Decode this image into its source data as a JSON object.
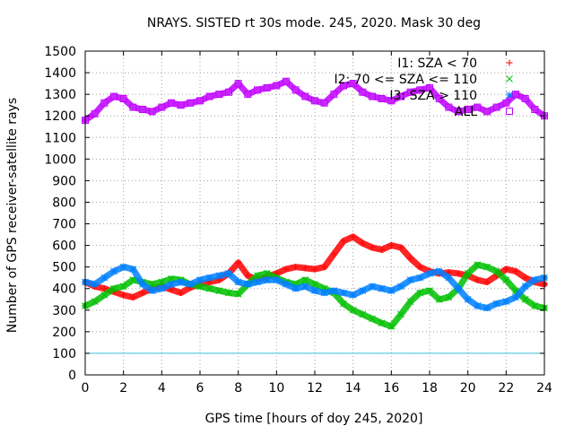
{
  "chart_data": {
    "type": "scatter",
    "title": "NRAYS. SISTED rt 30s mode. 245, 2020. Mask 30 deg",
    "xlabel": "GPS time [hours of doy 245, 2020]",
    "ylabel": "Number of GPS receiver-satellite rays",
    "xlim": [
      0,
      24
    ],
    "ylim": [
      0,
      1500
    ],
    "xticks": [
      0,
      2,
      4,
      6,
      8,
      10,
      12,
      14,
      16,
      18,
      20,
      22,
      24
    ],
    "yticks": [
      0,
      100,
      200,
      300,
      400,
      500,
      600,
      700,
      800,
      900,
      1000,
      1100,
      1200,
      1300,
      1400,
      1500
    ],
    "grid": true,
    "legend_position": "top-right",
    "reference_line": {
      "y": 100,
      "color": "#40c0e0"
    },
    "series": [
      {
        "name": "I1: SZA < 70",
        "marker": "plus",
        "color": "#ff0000",
        "x": [
          0,
          0.5,
          1,
          1.5,
          2,
          2.5,
          3,
          3.5,
          4,
          4.5,
          5,
          5.5,
          6,
          6.5,
          7,
          7.5,
          8,
          8.5,
          9,
          9.5,
          10,
          10.5,
          11,
          11.5,
          12,
          12.5,
          13,
          13.5,
          14,
          14.5,
          15,
          15.5,
          16,
          16.5,
          17,
          17.5,
          18,
          18.5,
          19,
          19.5,
          20,
          20.5,
          21,
          21.5,
          22,
          22.5,
          23,
          23.5,
          24
        ],
        "values": [
          430,
          410,
          400,
          385,
          370,
          360,
          380,
          400,
          410,
          395,
          380,
          405,
          420,
          430,
          440,
          470,
          520,
          460,
          440,
          455,
          470,
          490,
          500,
          495,
          490,
          500,
          560,
          620,
          640,
          610,
          590,
          580,
          600,
          590,
          540,
          500,
          480,
          470,
          475,
          470,
          460,
          440,
          430,
          460,
          490,
          480,
          450,
          430,
          420
        ]
      },
      {
        "name": "I2: 70 <= SZA <= 110",
        "marker": "cross",
        "color": "#00c000",
        "x": [
          0,
          0.5,
          1,
          1.5,
          2,
          2.5,
          3,
          3.5,
          4,
          4.5,
          5,
          5.5,
          6,
          6.5,
          7,
          7.5,
          8,
          8.5,
          9,
          9.5,
          10,
          10.5,
          11,
          11.5,
          12,
          12.5,
          13,
          13.5,
          14,
          14.5,
          15,
          15.5,
          16,
          16.5,
          17,
          17.5,
          18,
          18.5,
          19,
          19.5,
          20,
          20.5,
          21,
          21.5,
          22,
          22.5,
          23,
          23.5,
          24
        ],
        "values": [
          320,
          340,
          370,
          400,
          410,
          440,
          430,
          420,
          430,
          445,
          440,
          420,
          410,
          400,
          390,
          380,
          375,
          420,
          460,
          470,
          450,
          430,
          420,
          440,
          420,
          400,
          380,
          330,
          300,
          280,
          260,
          240,
          225,
          280,
          340,
          380,
          390,
          350,
          360,
          400,
          470,
          510,
          500,
          480,
          440,
          390,
          350,
          320,
          310
        ]
      },
      {
        "name": "I3: SZA > 110",
        "marker": "star",
        "color": "#0080ff",
        "x": [
          0,
          0.5,
          1,
          1.5,
          2,
          2.5,
          3,
          3.5,
          4,
          4.5,
          5,
          5.5,
          6,
          6.5,
          7,
          7.5,
          8,
          8.5,
          9,
          9.5,
          10,
          10.5,
          11,
          11.5,
          12,
          12.5,
          13,
          13.5,
          14,
          14.5,
          15,
          15.5,
          16,
          16.5,
          17,
          17.5,
          18,
          18.5,
          19,
          19.5,
          20,
          20.5,
          21,
          21.5,
          22,
          22.5,
          23,
          23.5,
          24
        ],
        "values": [
          430,
          420,
          450,
          480,
          500,
          490,
          420,
          390,
          400,
          420,
          430,
          420,
          440,
          450,
          460,
          470,
          430,
          420,
          430,
          440,
          440,
          420,
          400,
          410,
          390,
          380,
          390,
          380,
          370,
          390,
          410,
          400,
          390,
          410,
          440,
          450,
          470,
          480,
          450,
          400,
          350,
          320,
          310,
          330,
          340,
          360,
          410,
          440,
          450
        ]
      },
      {
        "name": "ALL",
        "marker": "square",
        "color": "#c000ff",
        "x": [
          0,
          0.5,
          1,
          1.5,
          2,
          2.5,
          3,
          3.5,
          4,
          4.5,
          5,
          5.5,
          6,
          6.5,
          7,
          7.5,
          8,
          8.5,
          9,
          9.5,
          10,
          10.5,
          11,
          11.5,
          12,
          12.5,
          13,
          13.5,
          14,
          14.5,
          15,
          15.5,
          16,
          16.5,
          17,
          17.5,
          18,
          18.5,
          19,
          19.5,
          20,
          20.5,
          21,
          21.5,
          22,
          22.5,
          23,
          23.5,
          24
        ],
        "values": [
          1180,
          1210,
          1260,
          1290,
          1280,
          1240,
          1230,
          1220,
          1240,
          1260,
          1250,
          1260,
          1270,
          1290,
          1300,
          1310,
          1350,
          1300,
          1320,
          1330,
          1340,
          1360,
          1320,
          1290,
          1270,
          1260,
          1300,
          1340,
          1350,
          1310,
          1290,
          1280,
          1270,
          1290,
          1310,
          1320,
          1330,
          1280,
          1240,
          1220,
          1230,
          1240,
          1220,
          1240,
          1260,
          1300,
          1280,
          1230,
          1200
        ]
      }
    ]
  }
}
